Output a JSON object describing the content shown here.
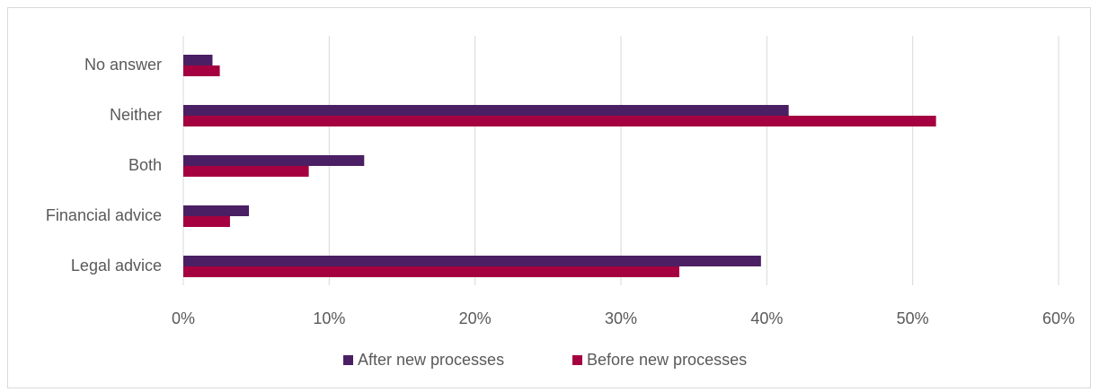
{
  "chart_data": {
    "type": "bar",
    "orientation": "horizontal",
    "categories": [
      "No answer",
      "Neither",
      "Both",
      "Financial advice",
      "Legal advice"
    ],
    "series": [
      {
        "name": "After new processes",
        "color": "#4b1f63",
        "values": [
          2.0,
          41.5,
          12.4,
          4.5,
          39.6
        ]
      },
      {
        "name": "Before new processes",
        "color": "#a5003f",
        "values": [
          2.5,
          51.6,
          8.6,
          3.2,
          34.0
        ]
      }
    ],
    "xlim": [
      0,
      60
    ],
    "x_ticks": [
      0,
      10,
      20,
      30,
      40,
      50,
      60
    ],
    "x_tick_labels": [
      "0%",
      "10%",
      "20%",
      "30%",
      "40%",
      "50%",
      "60%"
    ],
    "grid": true,
    "legend_position": "bottom",
    "title": "",
    "xlabel": "",
    "ylabel": ""
  }
}
